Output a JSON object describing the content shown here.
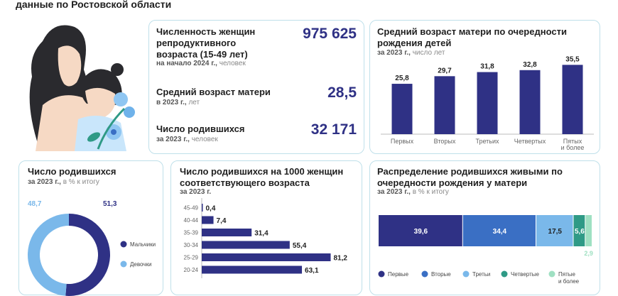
{
  "header": {
    "subtitle": "данные по Ростовской области"
  },
  "summary": {
    "women_label": "Численность женщин репродуктивного возраста (15-49 лет)",
    "women_value": "975 625",
    "women_period": "на начало 2024 г.,",
    "women_unit": "человек",
    "avg_age_label": "Средний возраст матери",
    "avg_age_value": "28,5",
    "avg_age_period": "в 2023 г.,",
    "avg_age_unit": "лет",
    "births_label": "Число родившихся",
    "births_value": "32 171",
    "births_period": "за 2023 г.,",
    "births_unit": "человек"
  },
  "colors": {
    "navy": "#2f3185",
    "blue": "#3a6fc4",
    "light_blue": "#7ab8ea",
    "teal": "#2f9a86",
    "mint": "#9fe0c2",
    "card_border": "#bfe0ea"
  },
  "chart_data": [
    {
      "id": "age_by_order",
      "type": "bar",
      "title": "Средний возраст матери по очередности рождения детей",
      "period": "за 2023 г.,",
      "unit": "число лет",
      "categories": [
        "Первых",
        "Вторых",
        "Третьих",
        "Четвертых",
        "Пятых и более"
      ],
      "values": [
        25.8,
        29.7,
        31.8,
        32.8,
        35.5
      ],
      "value_labels": [
        "25,8",
        "29,7",
        "31,8",
        "32,8",
        "35,5"
      ],
      "ylim": [
        0,
        40
      ]
    },
    {
      "id": "births_by_sex",
      "type": "pie",
      "title": "Число родившихся",
      "period": "за 2023 г.,",
      "unit": "в % к итогу",
      "categories": [
        "Мальчики",
        "Девочки"
      ],
      "values": [
        51.3,
        48.7
      ],
      "value_labels": [
        "51,3",
        "48,7"
      ],
      "colors": [
        "#2f3185",
        "#7ab8ea"
      ]
    },
    {
      "id": "births_per_1000",
      "type": "bar",
      "orientation": "horizontal",
      "title": "Число родившихся на 1000 женщин соответствующего возраста",
      "period": "за 2023 г.",
      "categories": [
        "45-49",
        "40-44",
        "35-39",
        "30-34",
        "25-29",
        "20-24"
      ],
      "values": [
        0.4,
        7.4,
        31.4,
        55.4,
        81.2,
        63.1
      ],
      "value_labels": [
        "0,4",
        "7,4",
        "31,4",
        "55,4",
        "81,2",
        "63,1"
      ],
      "xlim": [
        0,
        85
      ]
    },
    {
      "id": "births_by_order",
      "type": "bar",
      "orientation": "stacked-horizontal",
      "title": "Распределение родившихся живыми по очередности рождения у матери",
      "period": "за 2023 г.,",
      "unit": "в % к итогу",
      "categories": [
        "Первые",
        "Вторые",
        "Третьи",
        "Четвертые",
        "Пятые и более"
      ],
      "values": [
        39.6,
        34.4,
        17.5,
        5.6,
        2.9
      ],
      "value_labels": [
        "39,6",
        "34,4",
        "17,5",
        "5,6",
        "2,9"
      ],
      "colors": [
        "#2f3185",
        "#3a6fc4",
        "#7ab8ea",
        "#2f9a86",
        "#9fe0c2"
      ]
    }
  ]
}
